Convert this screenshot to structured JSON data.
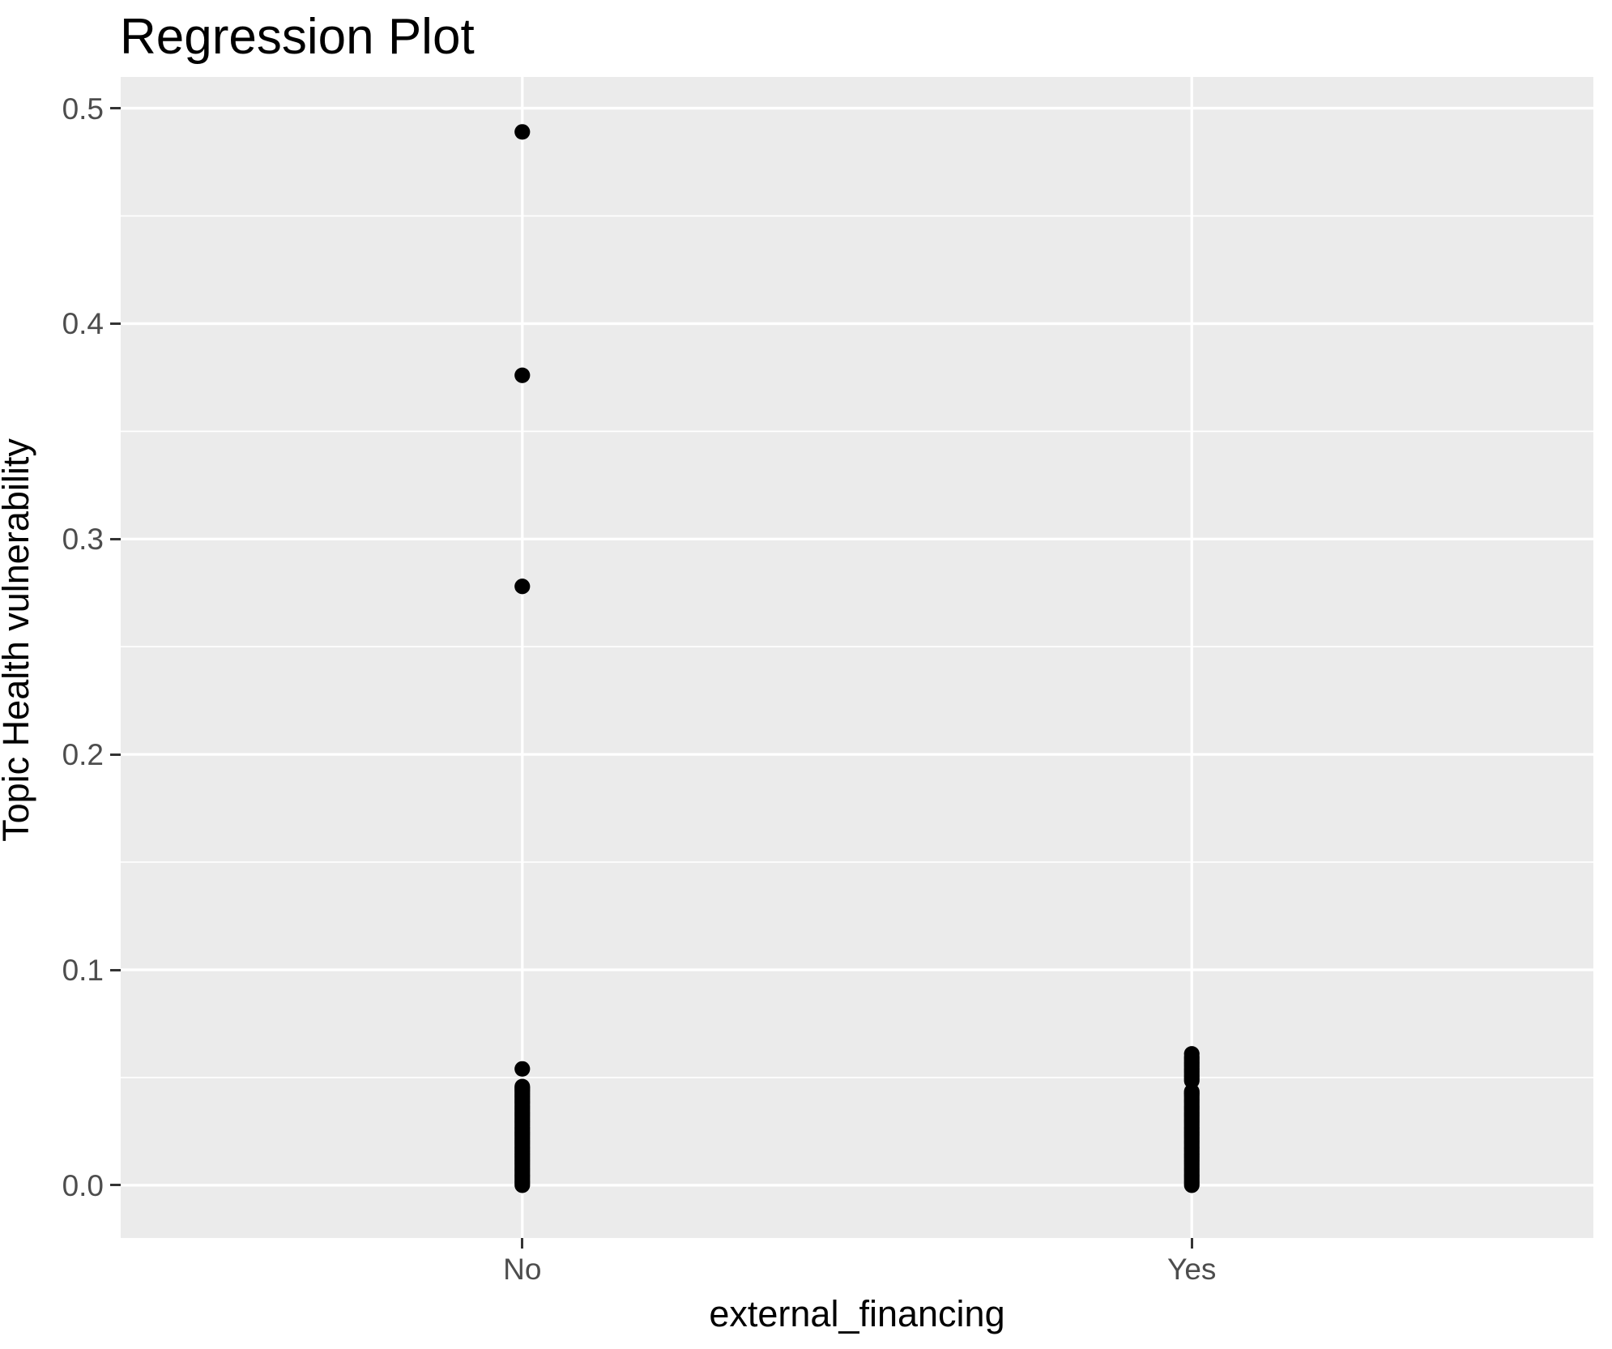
{
  "title": "Regression Plot",
  "axes": {
    "x": {
      "title": "external_financing",
      "categories": [
        "No",
        "Yes"
      ]
    },
    "y": {
      "title": "Topic Health vulnerability",
      "tick_labels": [
        "0.0",
        "0.1",
        "0.2",
        "0.3",
        "0.4",
        "0.5"
      ]
    }
  },
  "chart_data": {
    "type": "scatter",
    "title": "Regression Plot",
    "xlabel": "external_financing",
    "ylabel": "Topic Health vulnerability",
    "categories": [
      "No",
      "Yes"
    ],
    "ylim": [
      -0.0245,
      0.5145
    ],
    "y_major_ticks": [
      0.0,
      0.1,
      0.2,
      0.3,
      0.4,
      0.5
    ],
    "y_minor_gridlines": [
      0.05,
      0.15,
      0.25,
      0.35,
      0.45
    ],
    "grid": "white major and minor horizontal gridlines; white vertical major gridline at each category; no legend",
    "legend_position": "none",
    "series": [
      {
        "name": "No",
        "values": [
          0.489,
          0.376,
          0.278,
          0.054,
          0.0458,
          0.045,
          0.0442,
          0.0434,
          0.0425,
          0.0416,
          0.0407,
          0.0398,
          0.0389,
          0.038,
          0.037,
          0.036,
          0.035,
          0.034,
          0.033,
          0.032,
          0.031,
          0.03,
          0.029,
          0.028,
          0.027,
          0.026,
          0.025,
          0.024,
          0.023,
          0.022,
          0.021,
          0.02,
          0.019,
          0.018,
          0.017,
          0.016,
          0.015,
          0.014,
          0.013,
          0.012,
          0.011,
          0.01,
          0.009,
          0.008,
          0.007,
          0.006,
          0.005,
          0.004,
          0.003,
          0.002,
          0.001,
          0.0
        ]
      },
      {
        "name": "Yes",
        "values": [
          0.061,
          0.0595,
          0.0585,
          0.0575,
          0.0565,
          0.0555,
          0.0545,
          0.0535,
          0.0525,
          0.0515,
          0.0505,
          0.0495,
          0.0485,
          0.0435,
          0.0428,
          0.042,
          0.041,
          0.04,
          0.039,
          0.038,
          0.037,
          0.036,
          0.035,
          0.034,
          0.033,
          0.032,
          0.031,
          0.03,
          0.029,
          0.028,
          0.027,
          0.026,
          0.025,
          0.024,
          0.023,
          0.022,
          0.021,
          0.02,
          0.019,
          0.018,
          0.017,
          0.016,
          0.015,
          0.014,
          0.013,
          0.012,
          0.011,
          0.01,
          0.009,
          0.008,
          0.007,
          0.006,
          0.005,
          0.004,
          0.003,
          0.002,
          0.001,
          0.0
        ]
      }
    ],
    "style": {
      "panel_bg": "#EBEBEB",
      "grid_color": "#FFFFFF",
      "point_color": "#000000",
      "point_radius_px": 9.6,
      "tick_label_color": "#4D4D4D",
      "axis_tick_color": "#333333",
      "title_color": "#000000"
    }
  }
}
